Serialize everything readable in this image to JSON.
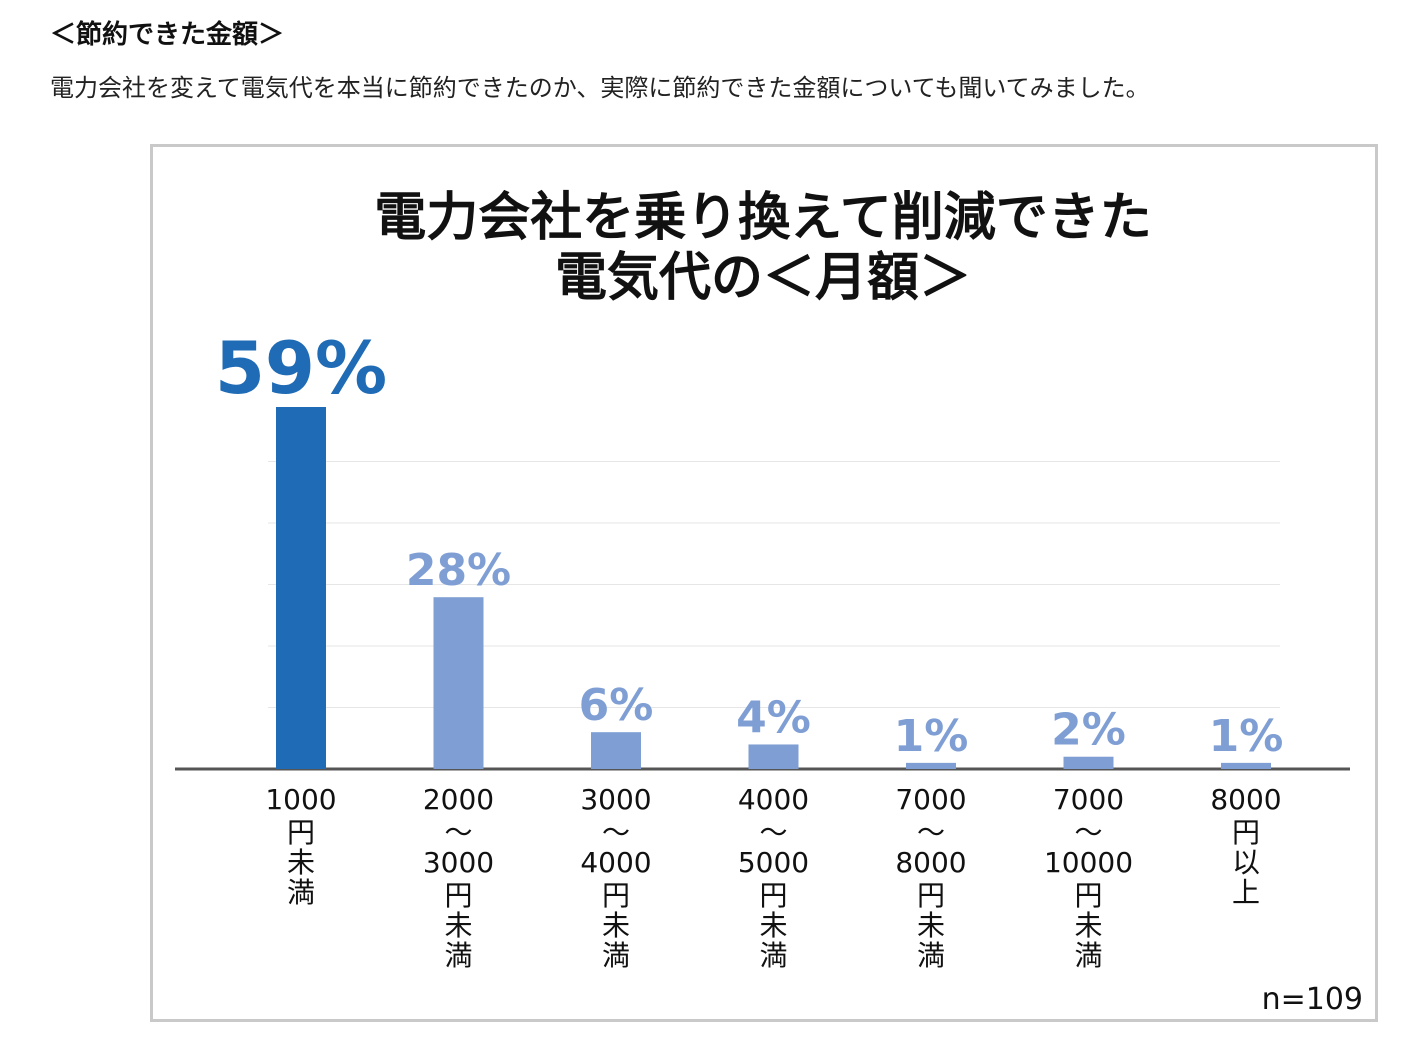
{
  "article": {
    "heading": "＜節約できた金額＞",
    "intro": "電力会社を変えて電気代を本当に節約できたのか、実際に節約できた金額についても聞いてみました。"
  },
  "chart_data": {
    "type": "bar",
    "title_lines": [
      "電力会社を乗り換えて削減できた",
      "電気代の＜月額＞"
    ],
    "categories": [
      [
        "1000",
        "円",
        "未",
        "満"
      ],
      [
        "2000",
        "〜",
        "3000",
        "円",
        "未",
        "満"
      ],
      [
        "3000",
        "〜",
        "4000",
        "円",
        "未",
        "満"
      ],
      [
        "4000",
        "〜",
        "5000",
        "円",
        "未",
        "満"
      ],
      [
        "7000",
        "〜",
        "8000",
        "円",
        "未",
        "満"
      ],
      [
        "7000",
        "〜",
        "10000",
        "円",
        "未",
        "満"
      ],
      [
        "8000",
        "円",
        "以",
        "上"
      ]
    ],
    "values": [
      59,
      28,
      6,
      4,
      1,
      2,
      1
    ],
    "value_labels": [
      "59%",
      "28%",
      "6%",
      "4%",
      "1%",
      "2%",
      "1%"
    ],
    "unit": "%",
    "ylim": [
      0,
      60
    ],
    "grid": true,
    "legend": "none",
    "n_label": "n=109",
    "colors": {
      "highlight_bar": "#1f6bb5",
      "bar": "#7f9fd4",
      "highlight_label": "#1f6bb5",
      "label": "#7f9fd4",
      "grid": "#e6e6e6",
      "axis": "#555555"
    }
  }
}
